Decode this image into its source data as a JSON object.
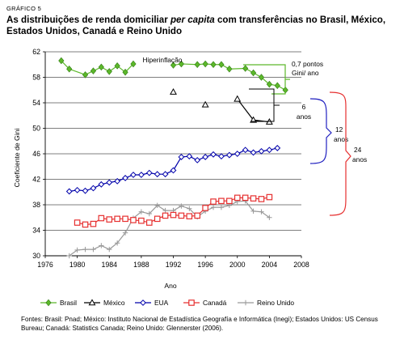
{
  "header": {
    "label": "GRÁFICO 5",
    "title_part1": "As distribuições de renda domiciliar ",
    "title_italic": "per capita",
    "title_part2": " com transferências no Brasil, México, Estados Unidos, Canadá e Reino Unido"
  },
  "source": "Fontes: Brasil: Pnad; México: Instituto Nacional de Estadística Geografía e Informática (Inegi); Estados Unidos: US Census Bureau; Canadá: Statistics Canada; Reino Unido: Glennerster (2006).",
  "chart_data": {
    "type": "line",
    "xlabel": "Ano",
    "ylabel": "Coeficiente de Gini",
    "xlim": [
      1976,
      2008
    ],
    "ylim": [
      30,
      62
    ],
    "xticks": [
      1976,
      1980,
      1984,
      1988,
      1992,
      1996,
      2000,
      2004,
      2008
    ],
    "yticks": [
      30,
      34,
      38,
      42,
      46,
      50,
      54,
      58,
      62
    ],
    "grid": "horizontal",
    "legend_position": "bottom",
    "series": [
      {
        "name": "Brasil",
        "color": "#5cb82a",
        "marker": "diamond-filled",
        "points": [
          [
            1978,
            60.6
          ],
          [
            1979,
            59.3
          ],
          [
            1981,
            58.4
          ],
          [
            1982,
            59.0
          ],
          [
            1983,
            59.6
          ],
          [
            1984,
            58.9
          ],
          [
            1985,
            59.8
          ],
          [
            1986,
            58.8
          ],
          [
            1987,
            60.1
          ],
          [
            1992,
            59.9
          ],
          [
            1993,
            60.1
          ],
          [
            1995,
            60.0
          ],
          [
            1996,
            60.1
          ],
          [
            1997,
            60.0
          ],
          [
            1998,
            60.0
          ],
          [
            1999,
            59.3
          ],
          [
            2001,
            59.4
          ],
          [
            2002,
            58.7
          ],
          [
            2003,
            58.0
          ],
          [
            2004,
            56.9
          ],
          [
            2005,
            56.7
          ],
          [
            2006,
            56.0
          ]
        ]
      },
      {
        "name": "México",
        "color": "#000000",
        "marker": "triangle-open",
        "points": [
          [
            1992,
            55.7
          ],
          [
            1996,
            53.7
          ],
          [
            2000,
            54.6
          ],
          [
            2002,
            51.3
          ],
          [
            2004,
            51.0
          ]
        ]
      },
      {
        "name": "EUA",
        "color": "#0000aa",
        "marker": "diamond-open",
        "points": [
          [
            1979,
            40.1
          ],
          [
            1980,
            40.3
          ],
          [
            1981,
            40.2
          ],
          [
            1982,
            40.6
          ],
          [
            1983,
            41.2
          ],
          [
            1984,
            41.5
          ],
          [
            1985,
            41.7
          ],
          [
            1986,
            42.2
          ],
          [
            1987,
            42.7
          ],
          [
            1988,
            42.7
          ],
          [
            1989,
            43.0
          ],
          [
            1990,
            42.8
          ],
          [
            1991,
            42.8
          ],
          [
            1992,
            43.4
          ],
          [
            1993,
            45.5
          ],
          [
            1994,
            45.6
          ],
          [
            1995,
            45.0
          ],
          [
            1996,
            45.5
          ],
          [
            1997,
            45.9
          ],
          [
            1998,
            45.6
          ],
          [
            1999,
            45.8
          ],
          [
            2000,
            46.0
          ],
          [
            2001,
            46.6
          ],
          [
            2002,
            46.2
          ],
          [
            2003,
            46.4
          ],
          [
            2004,
            46.6
          ],
          [
            2005,
            46.9
          ]
        ]
      },
      {
        "name": "Canadá",
        "color": "#e63030",
        "marker": "square-open",
        "points": [
          [
            1980,
            35.2
          ],
          [
            1981,
            34.9
          ],
          [
            1982,
            35.0
          ],
          [
            1983,
            35.9
          ],
          [
            1984,
            35.7
          ],
          [
            1985,
            35.8
          ],
          [
            1986,
            35.8
          ],
          [
            1987,
            35.6
          ],
          [
            1988,
            35.5
          ],
          [
            1989,
            35.2
          ],
          [
            1990,
            35.8
          ],
          [
            1991,
            36.3
          ],
          [
            1992,
            36.4
          ],
          [
            1993,
            36.3
          ],
          [
            1994,
            36.2
          ],
          [
            1995,
            36.3
          ],
          [
            1996,
            37.5
          ],
          [
            1997,
            38.5
          ],
          [
            1998,
            38.6
          ],
          [
            1999,
            38.6
          ],
          [
            2000,
            39.1
          ],
          [
            2001,
            39.1
          ],
          [
            2002,
            39.0
          ],
          [
            2003,
            38.9
          ],
          [
            2004,
            39.2
          ]
        ]
      },
      {
        "name": "Reino Unido",
        "color": "#999999",
        "marker": "plus",
        "points": [
          [
            1979,
            30.0
          ],
          [
            1980,
            30.9
          ],
          [
            1981,
            31.0
          ],
          [
            1982,
            31.0
          ],
          [
            1983,
            31.6
          ],
          [
            1984,
            31.0
          ],
          [
            1985,
            32.0
          ],
          [
            1986,
            33.6
          ],
          [
            1987,
            35.9
          ],
          [
            1988,
            36.9
          ],
          [
            1989,
            36.6
          ],
          [
            1990,
            37.9
          ],
          [
            1991,
            37.1
          ],
          [
            1992,
            37.1
          ],
          [
            1993,
            37.8
          ],
          [
            1994,
            37.4
          ],
          [
            1995,
            36.1
          ],
          [
            1996,
            37.0
          ],
          [
            1997,
            37.6
          ],
          [
            1998,
            37.6
          ],
          [
            1999,
            37.9
          ],
          [
            2000,
            38.5
          ],
          [
            2001,
            38.6
          ],
          [
            2002,
            37.0
          ],
          [
            2003,
            36.9
          ],
          [
            2004,
            36.0
          ]
        ]
      }
    ],
    "annotations": {
      "hyperinflation": "Hiperinflação",
      "brace_brasil": [
        "0,7 pontos",
        "Gini/ ano"
      ],
      "brace_6": [
        "6",
        "anos"
      ],
      "brace_12": [
        "12",
        "anos"
      ],
      "brace_24": [
        "24",
        "anos"
      ]
    }
  }
}
